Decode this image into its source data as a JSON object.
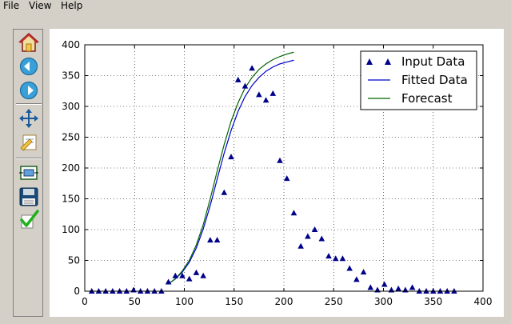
{
  "menubar": {
    "items": [
      "File",
      "View",
      "Help"
    ]
  },
  "toolbar": {
    "buttons": [
      "home-icon",
      "back-icon",
      "forward-icon",
      "pan-icon",
      "zoom-icon",
      "subplots-icon",
      "save-icon",
      "apply-icon"
    ]
  },
  "colors": {
    "input": "#00008b",
    "fitted": "#0000cd",
    "forecast": "#006400"
  },
  "chart_data": {
    "type": "scatter",
    "xlim": [
      0,
      400
    ],
    "ylim": [
      0,
      400
    ],
    "x_ticks": [
      "0",
      "50",
      "100",
      "150",
      "200",
      "250",
      "300",
      "350",
      "400"
    ],
    "y_ticks": [
      "0",
      "50",
      "100",
      "150",
      "200",
      "250",
      "300",
      "350",
      "400"
    ],
    "grid": true,
    "legend_position": "top-right",
    "series": [
      {
        "name": "Input Data",
        "style": "triangles",
        "points": [
          [
            7,
            0
          ],
          [
            14,
            0
          ],
          [
            21,
            0
          ],
          [
            28,
            0
          ],
          [
            35,
            0
          ],
          [
            42,
            0
          ],
          [
            49,
            2
          ],
          [
            56,
            0
          ],
          [
            63,
            0
          ],
          [
            70,
            0
          ],
          [
            77,
            0
          ],
          [
            84,
            15
          ],
          [
            91,
            25
          ],
          [
            98,
            25
          ],
          [
            105,
            20
          ],
          [
            112,
            30
          ],
          [
            119,
            25
          ],
          [
            126,
            83
          ],
          [
            133,
            83
          ],
          [
            140,
            160
          ],
          [
            147,
            218
          ],
          [
            154,
            343
          ],
          [
            161,
            333
          ],
          [
            168,
            362
          ],
          [
            175,
            319
          ],
          [
            182,
            310
          ],
          [
            189,
            321
          ],
          [
            196,
            212
          ],
          [
            203,
            183
          ],
          [
            210,
            127
          ],
          [
            217,
            73
          ],
          [
            224,
            89
          ],
          [
            231,
            100
          ],
          [
            238,
            85
          ],
          [
            245,
            57
          ],
          [
            252,
            53
          ],
          [
            259,
            53
          ],
          [
            266,
            37
          ],
          [
            273,
            19
          ],
          [
            280,
            31
          ],
          [
            287,
            6
          ],
          [
            294,
            2
          ],
          [
            301,
            11
          ],
          [
            308,
            2
          ],
          [
            315,
            4
          ],
          [
            322,
            2
          ],
          [
            329,
            6
          ],
          [
            336,
            0
          ],
          [
            343,
            0
          ],
          [
            350,
            0
          ],
          [
            357,
            0
          ],
          [
            364,
            0
          ],
          [
            371,
            0
          ]
        ]
      },
      {
        "name": "Fitted Data",
        "style": "line",
        "x": [
          84,
          91,
          98,
          105,
          112,
          119,
          126,
          133,
          140,
          147,
          154,
          161,
          168,
          175,
          182,
          189,
          196,
          203,
          210
        ],
        "y": [
          12,
          20,
          31,
          47,
          70,
          101,
          139,
          182,
          224,
          261,
          292,
          316,
          334,
          347,
          357,
          364,
          369,
          372,
          375
        ]
      },
      {
        "name": "Forecast",
        "style": "line",
        "x": [
          84,
          91,
          98,
          105,
          112,
          119,
          126,
          133,
          140,
          147,
          154,
          161,
          168,
          175,
          182,
          189,
          196,
          203,
          210
        ],
        "y": [
          12,
          20,
          33,
          50,
          75,
          108,
          150,
          195,
          238,
          276,
          306,
          330,
          347,
          360,
          369,
          376,
          381,
          385,
          388
        ]
      }
    ]
  }
}
